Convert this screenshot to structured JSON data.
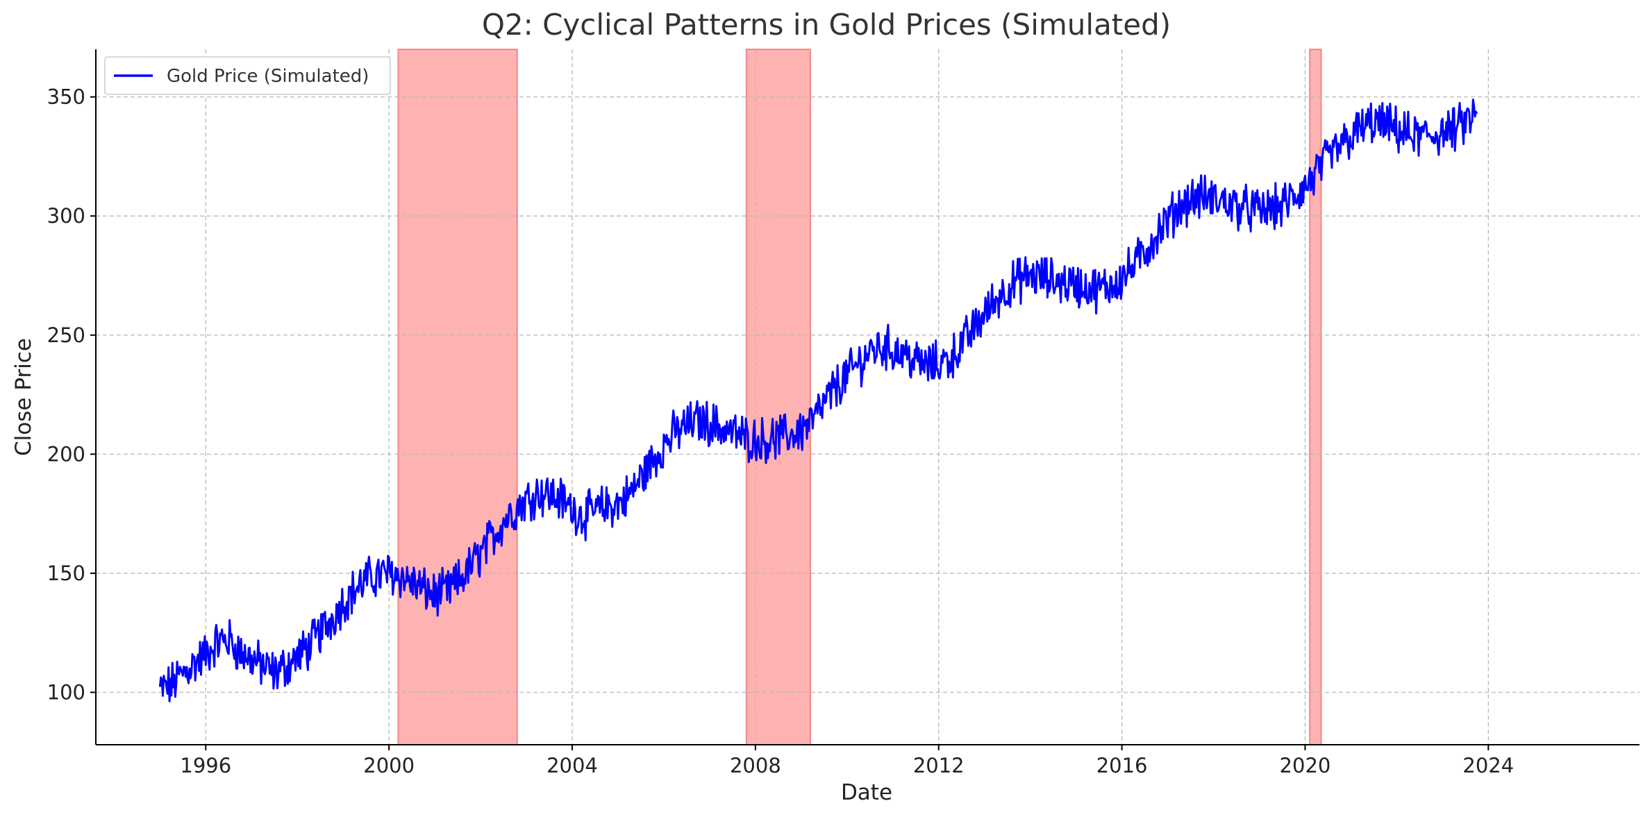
{
  "chart_data": {
    "type": "line",
    "title": "Q2: Cyclical Patterns in Gold Prices (Simulated)",
    "xlabel": "Date",
    "ylabel": "Close Price",
    "xlim": [
      1993.6,
      2027.3
    ],
    "ylim": [
      78,
      370
    ],
    "xticks": [
      1996,
      2000,
      2004,
      2008,
      2012,
      2016,
      2020,
      2024
    ],
    "yticks": [
      100,
      150,
      200,
      250,
      300,
      350
    ],
    "grid": true,
    "legend": {
      "position": "top-left",
      "entries": [
        "Gold Price (Simulated)"
      ]
    },
    "shaded_periods": [
      {
        "start": 2000.2,
        "end": 2002.8
      },
      {
        "start": 2007.8,
        "end": 2009.2
      },
      {
        "start": 2020.1,
        "end": 2020.35
      }
    ],
    "series": [
      {
        "name": "Gold Price (Simulated)",
        "color": "#0000ff",
        "x": [
          1995.0,
          1995.25,
          1995.5,
          1995.75,
          1996.0,
          1996.25,
          1996.5,
          1996.75,
          1997.0,
          1997.25,
          1997.5,
          1997.75,
          1998.0,
          1998.25,
          1998.5,
          1998.75,
          1999.0,
          1999.25,
          1999.5,
          1999.75,
          2000.0,
          2000.25,
          2000.5,
          2000.75,
          2001.0,
          2001.25,
          2001.5,
          2001.75,
          2002.0,
          2002.25,
          2002.5,
          2002.75,
          2003.0,
          2003.25,
          2003.5,
          2003.75,
          2004.0,
          2004.25,
          2004.5,
          2004.75,
          2005.0,
          2005.25,
          2005.5,
          2005.75,
          2006.0,
          2006.25,
          2006.5,
          2006.75,
          2007.0,
          2007.25,
          2007.5,
          2007.75,
          2008.0,
          2008.25,
          2008.5,
          2008.75,
          2009.0,
          2009.25,
          2009.5,
          2009.75,
          2010.0,
          2010.25,
          2010.5,
          2010.75,
          2011.0,
          2011.25,
          2011.5,
          2011.75,
          2012.0,
          2012.25,
          2012.5,
          2012.75,
          2013.0,
          2013.25,
          2013.5,
          2013.75,
          2014.0,
          2014.25,
          2014.5,
          2014.75,
          2015.0,
          2015.25,
          2015.5,
          2015.75,
          2016.0,
          2016.25,
          2016.5,
          2016.75,
          2017.0,
          2017.25,
          2017.5,
          2017.75,
          2018.0,
          2018.25,
          2018.5,
          2018.75,
          2019.0,
          2019.25,
          2019.5,
          2019.75,
          2020.0,
          2020.25,
          2020.5,
          2020.75,
          2021.0,
          2021.25,
          2021.5,
          2021.75,
          2022.0,
          2022.25,
          2022.5,
          2022.75,
          2023.0,
          2023.25,
          2023.5,
          2023.75
        ],
        "y": [
          101,
          103,
          108,
          112,
          116,
          121,
          122,
          117,
          114,
          111,
          108,
          111,
          115,
          119,
          125,
          131,
          138,
          143,
          147,
          149,
          150,
          149,
          146,
          143,
          141,
          142,
          146,
          152,
          158,
          165,
          172,
          177,
          181,
          184,
          183,
          181,
          177,
          174,
          176,
          178,
          179,
          183,
          190,
          197,
          204,
          209,
          212,
          214,
          213,
          211,
          209,
          207,
          206,
          206,
          207,
          208,
          210,
          214,
          221,
          228,
          233,
          238,
          243,
          245,
          244,
          242,
          239,
          237,
          238,
          240,
          246,
          252,
          259,
          265,
          270,
          273,
          275,
          274,
          273,
          272,
          271,
          270,
          269,
          271,
          274,
          279,
          285,
          292,
          298,
          304,
          307,
          308,
          307,
          306,
          304,
          303,
          302,
          303,
          304,
          308,
          312,
          318,
          324,
          329,
          333,
          337,
          339,
          338,
          336,
          334,
          333,
          334,
          335,
          336,
          339,
          343
        ]
      }
    ]
  }
}
